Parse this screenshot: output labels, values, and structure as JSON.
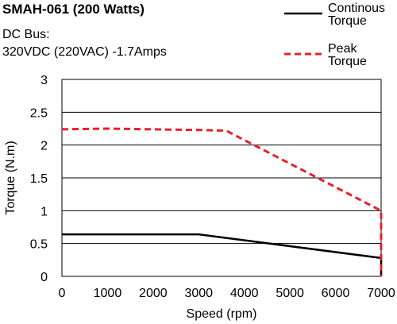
{
  "header": {
    "title": "SMAH-061 (200 Watts)",
    "line1": "DC Bus:",
    "line2": "320VDC (220VAC)  -1.7Amps"
  },
  "colors": {
    "continuous": "#000000",
    "peak": "#e8202a",
    "grid": "#000000"
  },
  "chart_data": {
    "type": "line",
    "title": "SMAH-061 (200 Watts)",
    "xlabel": "Speed (rpm)",
    "ylabel": "Torque (N.m)",
    "xlim": [
      0,
      7000
    ],
    "ylim": [
      0,
      3
    ],
    "xticks": [
      0,
      1000,
      2000,
      3000,
      4000,
      5000,
      6000,
      7000
    ],
    "yticks": [
      0,
      0.5,
      1,
      1.5,
      2,
      2.5,
      3
    ],
    "ytick_labels": [
      "0",
      "0.5",
      "1",
      "1.5",
      "2",
      "2.5",
      "3"
    ],
    "grid": "horizontal",
    "legend_position": "top-right",
    "series": [
      {
        "name": "Continous Torque",
        "legend_lines": [
          "Continous",
          "Torque"
        ],
        "style": "solid",
        "points": [
          [
            0,
            0.64
          ],
          [
            3000,
            0.64
          ],
          [
            7000,
            0.28
          ],
          [
            7000,
            0
          ]
        ]
      },
      {
        "name": "Peak Torque",
        "legend_lines": [
          "Peak",
          "Torque"
        ],
        "style": "dashed",
        "points": [
          [
            0,
            2.24
          ],
          [
            1000,
            2.25
          ],
          [
            3000,
            2.23
          ],
          [
            3600,
            2.22
          ],
          [
            7000,
            1.0
          ],
          [
            7000,
            0
          ]
        ]
      }
    ]
  }
}
